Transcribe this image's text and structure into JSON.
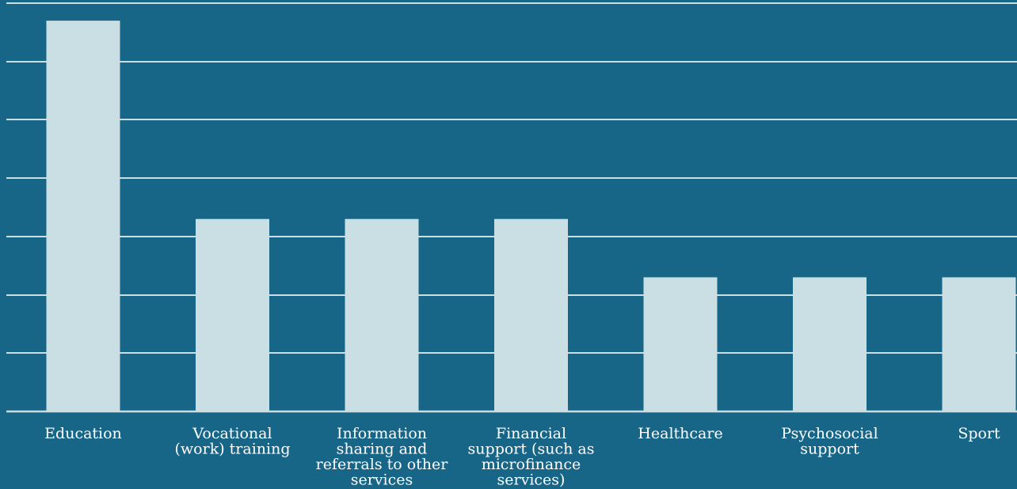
{
  "chart_data": {
    "type": "bar",
    "title": "",
    "xlabel": "",
    "ylabel": "",
    "categories": [
      "Education",
      "Vocational (work) training",
      "Information sharing and referrals to other services",
      "Financial support (such as microfinance services)",
      "Healthcare",
      "Psychosocial support",
      "Sport"
    ],
    "category_lines": [
      [
        "Education"
      ],
      [
        "Vocational",
        "(work) training"
      ],
      [
        "Information",
        "sharing and",
        "referrals to other",
        "services"
      ],
      [
        "Financial",
        "support (such as",
        "microfinance",
        "services)"
      ],
      [
        "Healthcare"
      ],
      [
        "Psychosocial",
        "support"
      ],
      [
        "Sport"
      ]
    ],
    "values": [
      6.7,
      3.3,
      3.3,
      3.3,
      2.3,
      2.3,
      2.3
    ],
    "ylim": [
      0,
      7
    ],
    "grid": true,
    "legend": "none",
    "colors": {
      "background": "#186687",
      "bar": "#c9dfe4",
      "gridline": "#c9dfe4",
      "text": "#ffffff"
    }
  }
}
